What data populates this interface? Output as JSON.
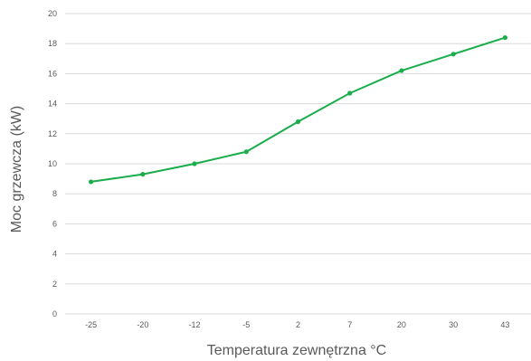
{
  "chart_data": {
    "type": "line",
    "title": "",
    "xlabel": "Temperatura zewnętrzna °C",
    "ylabel": "Moc grzewcza (kW)",
    "categories": [
      "-25",
      "-20",
      "-12",
      "-5",
      "2",
      "7",
      "20",
      "30",
      "43"
    ],
    "series": [
      {
        "values": [
          8.8,
          9.3,
          10.0,
          10.8,
          12.8,
          14.7,
          16.2,
          17.3,
          18.4
        ],
        "color": "#1aad4b"
      }
    ],
    "ylim": [
      0,
      20
    ],
    "yticks": [
      0,
      2,
      4,
      6,
      8,
      10,
      12,
      14,
      16,
      18,
      20
    ],
    "grid": true,
    "legend": "none",
    "colors": {
      "line": "#1aad4b",
      "grid": "#d9d9d9",
      "text": "#595959"
    }
  }
}
